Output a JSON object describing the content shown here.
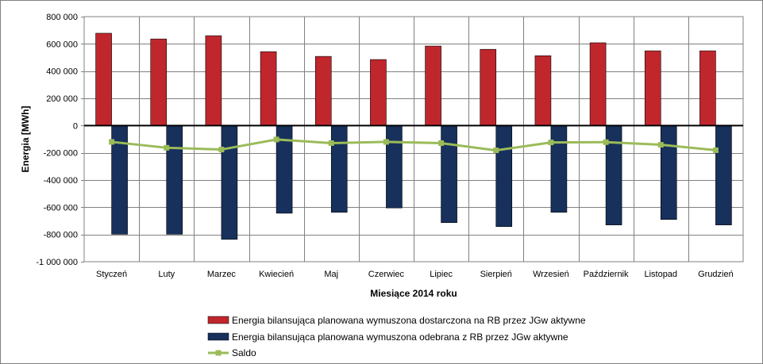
{
  "chart_data": {
    "type": "bar",
    "title": "",
    "xlabel": "Miesiące 2014 roku",
    "ylabel": "Energia [MWh]",
    "ylim": [
      -1000000,
      800000
    ],
    "y_ticks": [
      800000,
      600000,
      400000,
      200000,
      0,
      -200000,
      -400000,
      -600000,
      -800000,
      -1000000
    ],
    "y_tick_labels": [
      "800 000",
      "600 000",
      "400 000",
      "200 000",
      "0",
      "-200 000",
      "-400 000",
      "-600 000",
      "-800 000",
      "-1 000 000"
    ],
    "categories": [
      "Styczeń",
      "Luty",
      "Marzec",
      "Kwiecień",
      "Maj",
      "Czerwiec",
      "Lipiec",
      "Sierpień",
      "Wrzesień",
      "Październik",
      "Listopad",
      "Grudzień"
    ],
    "grid": true,
    "legend_position": "bottom",
    "series": [
      {
        "name": "Energia bilansująca planowana wymuszona dostarczona na RB przez JGw aktywne",
        "type": "bar",
        "color": "#C0272D",
        "values": [
          678000,
          636000,
          660000,
          543000,
          508000,
          485000,
          584000,
          560000,
          513000,
          608000,
          549000,
          549000
        ]
      },
      {
        "name": "Energia bilansująca planowana wymuszona odebrana z RB przez JGw aktywne",
        "type": "bar",
        "color": "#17305C",
        "values": [
          -798000,
          -798000,
          -836000,
          -644000,
          -637000,
          -605000,
          -713000,
          -742000,
          -637000,
          -730000,
          -690000,
          -730000
        ]
      },
      {
        "name": "Saldo",
        "type": "line",
        "color": "#9BBB59",
        "values": [
          -120000,
          -163000,
          -176000,
          -102000,
          -129000,
          -120000,
          -129000,
          -182000,
          -124000,
          -122000,
          -141000,
          -181000
        ]
      }
    ]
  }
}
